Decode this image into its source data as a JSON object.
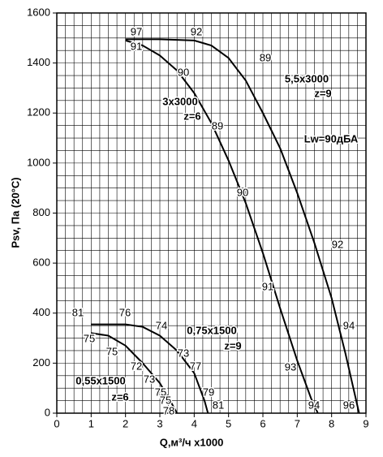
{
  "chart_data": {
    "type": "line",
    "x_label": "Q,м³/ч x1000",
    "y_label": "Psv, Па (20°C)",
    "xlim": [
      0,
      9
    ],
    "ylim": [
      0,
      1600
    ],
    "xticks": [
      0,
      1,
      2,
      3,
      4,
      5,
      6,
      7,
      8,
      9
    ],
    "yticks": [
      0,
      200,
      400,
      600,
      800,
      1000,
      1200,
      1400,
      1600
    ],
    "grid": true,
    "series": [
      {
        "color": "#000000",
        "x": [
          2,
          3,
          4,
          4.5,
          5,
          5.5,
          6,
          6.5,
          7,
          7.5,
          8,
          8.4,
          8.7,
          8.8
        ],
        "values": [
          1495,
          1495,
          1490,
          1470,
          1420,
          1330,
          1200,
          1060,
          880,
          680,
          460,
          240,
          60,
          0
        ]
      },
      {
        "color": "#000000",
        "x": [
          2,
          2.5,
          3,
          3.5,
          4,
          4.5,
          5,
          5.5,
          6,
          6.5,
          7,
          7.4,
          7.6
        ],
        "values": [
          1490,
          1470,
          1430,
          1370,
          1280,
          1160,
          1010,
          840,
          640,
          420,
          210,
          60,
          0
        ]
      },
      {
        "color": "#000000",
        "x": [
          1,
          2,
          2.5,
          3,
          3.5,
          4,
          4.3,
          4.4
        ],
        "values": [
          355,
          355,
          345,
          310,
          250,
          160,
          50,
          0
        ]
      },
      {
        "color": "#000000",
        "x": [
          1,
          1.5,
          2,
          2.5,
          3,
          3.3,
          3.5
        ],
        "values": [
          320,
          310,
          270,
          200,
          120,
          50,
          0
        ]
      }
    ],
    "annotations": [
      "97",
      "92",
      "91",
      "89",
      "90",
      "5,5x3000",
      "z=9",
      "3x3000",
      "z=6",
      "89",
      "Lw=90дБА",
      "90",
      "92",
      "91",
      "94",
      "93",
      "94",
      "96",
      "81",
      "76",
      "74",
      "0,75x1500",
      "z=9",
      "75",
      "75",
      "73",
      "77",
      "72",
      "73",
      "79",
      "75",
      "81",
      "75",
      "78",
      "0,55x1500",
      "z=6"
    ]
  }
}
